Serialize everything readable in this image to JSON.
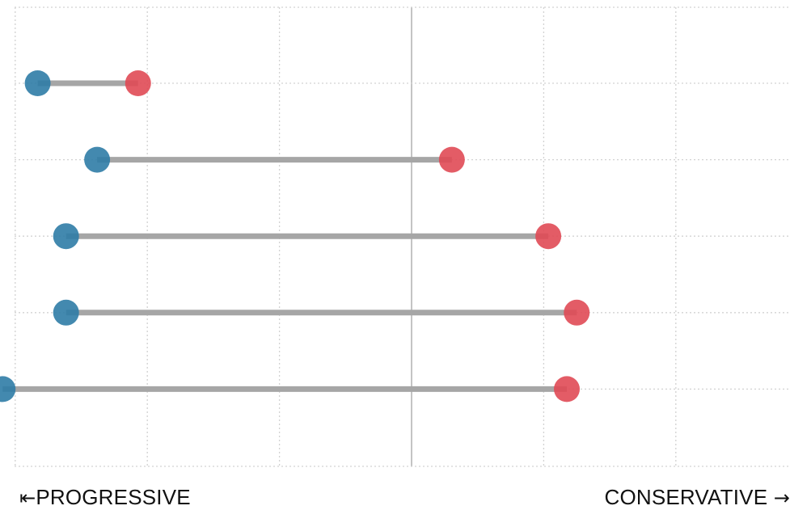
{
  "chart_data": {
    "type": "dumbbell",
    "xlim": [
      -10,
      10
    ],
    "x_gridlines": [
      -10,
      -8,
      -6,
      -4,
      -2,
      0,
      2,
      4,
      6,
      8,
      10
    ],
    "reference_line": 0,
    "grid": true,
    "rows": [
      {
        "left": -5.66,
        "right": -4.14
      },
      {
        "left": -4.76,
        "right": 0.61
      },
      {
        "left": -5.23,
        "right": 2.07
      },
      {
        "left": -5.23,
        "right": 2.5
      },
      {
        "left": -6.19,
        "right": 2.35
      }
    ],
    "left_label": "PROGRESSIVE",
    "right_label": "CONSERVATIVE",
    "left_arrow": "⇤",
    "right_arrow": "→"
  },
  "colors": {
    "left_point": "#2f7ca6",
    "right_point": "#e04a55",
    "connector": "#a6a6a6",
    "grid": "#d2d2d2",
    "reference": "#c4c4c4"
  }
}
